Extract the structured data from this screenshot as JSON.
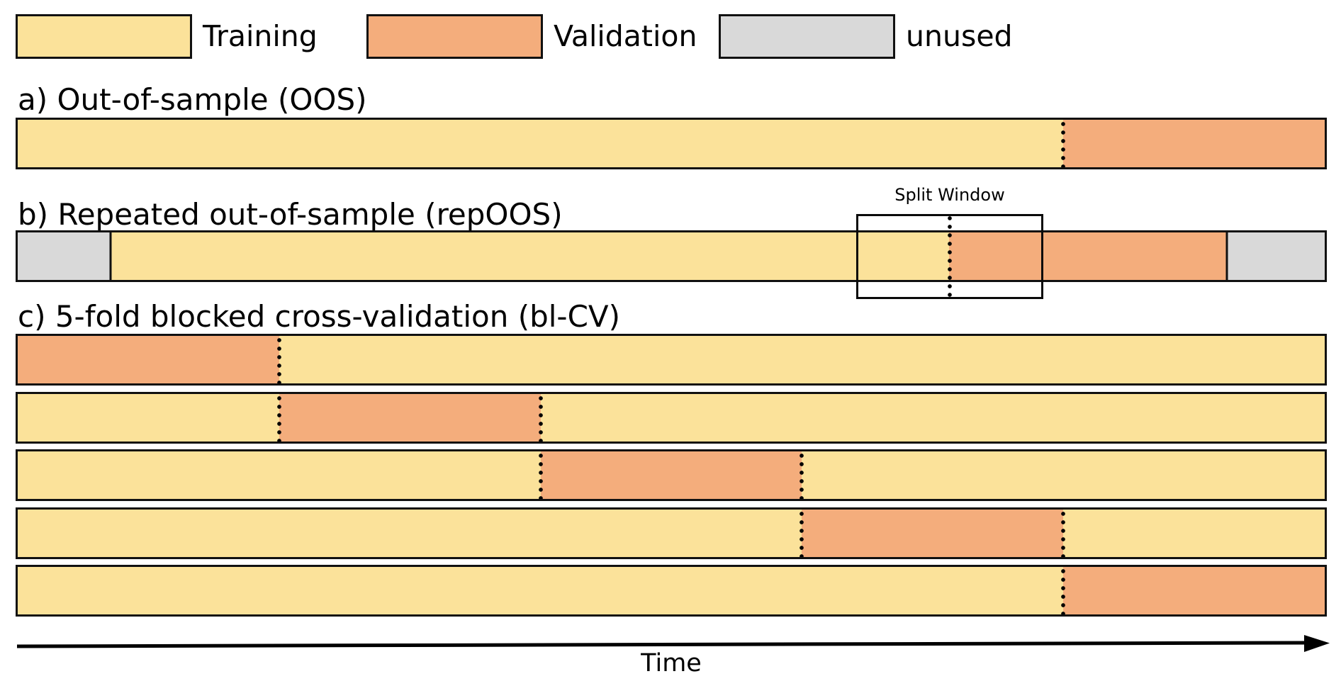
{
  "colors": {
    "training": "#FBE29A",
    "validation": "#F4AD7C",
    "unused": "#D9D9D9",
    "border": "#111111"
  },
  "legend": {
    "items": [
      {
        "id": "training",
        "label": "Training"
      },
      {
        "id": "validation",
        "label": "Validation"
      },
      {
        "id": "unused",
        "label": "unused"
      }
    ]
  },
  "sections": [
    {
      "id": "oos",
      "title": "a) Out-of-sample (OOS)",
      "bars": [
        {
          "segments": [
            {
              "type": "training",
              "width": 0.8
            },
            {
              "type": "validation",
              "width": 0.2
            }
          ],
          "dividers": [
            {
              "pos": 0.8,
              "style": "dotted"
            }
          ]
        }
      ]
    },
    {
      "id": "repoos",
      "title": "b) Repeated out-of-sample (repOOS)",
      "annotation": "Split Window",
      "bars": [
        {
          "segments": [
            {
              "type": "unused",
              "width": 0.0708
            },
            {
              "type": "training",
              "width": 0.6416
            },
            {
              "type": "validation",
              "width": 0.2125
            },
            {
              "type": "unused",
              "width": 0.0751
            }
          ],
          "dividers": [
            {
              "pos": 0.0708,
              "style": "solid"
            },
            {
              "pos": 0.9249,
              "style": "solid"
            }
          ]
        }
      ]
    },
    {
      "id": "blcv",
      "title": "c) 5-fold blocked cross-validation (bl-CV)",
      "bars": [
        {
          "segments": [
            {
              "type": "validation",
              "width": 0.2
            },
            {
              "type": "training",
              "width": 0.8
            }
          ],
          "dividers": [
            {
              "pos": 0.2,
              "style": "dotted"
            }
          ]
        },
        {
          "segments": [
            {
              "type": "training",
              "width": 0.2
            },
            {
              "type": "validation",
              "width": 0.2
            },
            {
              "type": "training",
              "width": 0.6
            }
          ],
          "dividers": [
            {
              "pos": 0.2,
              "style": "dotted"
            },
            {
              "pos": 0.4,
              "style": "dotted"
            }
          ]
        },
        {
          "segments": [
            {
              "type": "training",
              "width": 0.4
            },
            {
              "type": "validation",
              "width": 0.2
            },
            {
              "type": "training",
              "width": 0.4
            }
          ],
          "dividers": [
            {
              "pos": 0.4,
              "style": "dotted"
            },
            {
              "pos": 0.6,
              "style": "dotted"
            }
          ]
        },
        {
          "segments": [
            {
              "type": "training",
              "width": 0.6
            },
            {
              "type": "validation",
              "width": 0.2
            },
            {
              "type": "training",
              "width": 0.2
            }
          ],
          "dividers": [
            {
              "pos": 0.6,
              "style": "dotted"
            },
            {
              "pos": 0.8,
              "style": "dotted"
            }
          ]
        },
        {
          "segments": [
            {
              "type": "training",
              "width": 0.8
            },
            {
              "type": "validation",
              "width": 0.2
            }
          ],
          "dividers": [
            {
              "pos": 0.8,
              "style": "dotted"
            }
          ]
        }
      ]
    }
  ],
  "axis": {
    "label": "Time"
  }
}
